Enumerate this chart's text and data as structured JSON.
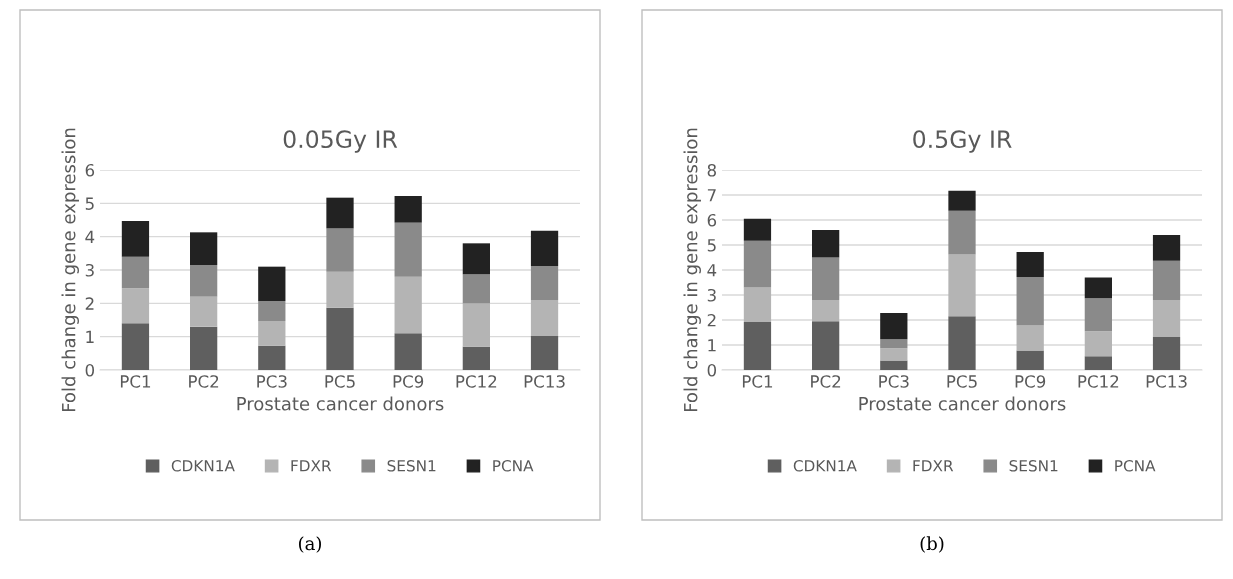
{
  "chart_data": [
    {
      "type": "bar",
      "title": "0.05Gy IR",
      "xlabel": "Prostate cancer donors",
      "ylabel": "Fold change in gene expression",
      "stacked": true,
      "categories": [
        "PC1",
        "PC2",
        "PC3",
        "PC5",
        "PC9",
        "PC12",
        "PC13"
      ],
      "series": [
        {
          "name": "CDKN1A",
          "color": "#5f5f5f",
          "values": [
            1.4,
            1.3,
            0.73,
            1.87,
            1.1,
            0.7,
            1.02
          ]
        },
        {
          "name": "FDXR",
          "color": "#b4b4b4",
          "values": [
            1.05,
            0.9,
            0.74,
            1.08,
            1.7,
            1.3,
            1.08
          ]
        },
        {
          "name": "SESN1",
          "color": "#8a8a8a",
          "values": [
            0.95,
            0.95,
            0.6,
            1.3,
            1.62,
            0.87,
            1.02
          ]
        },
        {
          "name": "PCNA",
          "color": "#222222",
          "values": [
            1.07,
            0.98,
            1.03,
            0.92,
            0.8,
            0.93,
            1.06
          ]
        }
      ],
      "ylim": [
        0,
        6
      ],
      "yticks": [
        0,
        1,
        2,
        3,
        4,
        5,
        6
      ],
      "grid": "y",
      "legend": "bottom",
      "annotations": [
        "(a)"
      ]
    },
    {
      "type": "bar",
      "title": "0.5Gy IR",
      "xlabel": "Prostate cancer donors",
      "ylabel": "Fold change in gene expression",
      "stacked": true,
      "categories": [
        "PC1",
        "PC2",
        "PC3",
        "PC5",
        "PC9",
        "PC12",
        "PC13"
      ],
      "series": [
        {
          "name": "CDKN1A",
          "color": "#5f5f5f",
          "values": [
            1.92,
            1.95,
            0.38,
            2.15,
            0.78,
            0.55,
            1.32
          ]
        },
        {
          "name": "FDXR",
          "color": "#b4b4b4",
          "values": [
            1.38,
            0.85,
            0.49,
            2.47,
            1.0,
            1.0,
            1.48
          ]
        },
        {
          "name": "SESN1",
          "color": "#8a8a8a",
          "values": [
            1.87,
            1.7,
            0.36,
            1.75,
            1.94,
            1.32,
            1.57
          ]
        },
        {
          "name": "PCNA",
          "color": "#222222",
          "values": [
            0.88,
            1.1,
            1.05,
            0.8,
            1.0,
            0.83,
            1.03
          ]
        }
      ],
      "ylim": [
        0,
        8
      ],
      "yticks": [
        0,
        1,
        2,
        3,
        4,
        5,
        6,
        7,
        8
      ],
      "grid": "y",
      "legend": "bottom",
      "annotations": [
        "(b)"
      ]
    }
  ]
}
